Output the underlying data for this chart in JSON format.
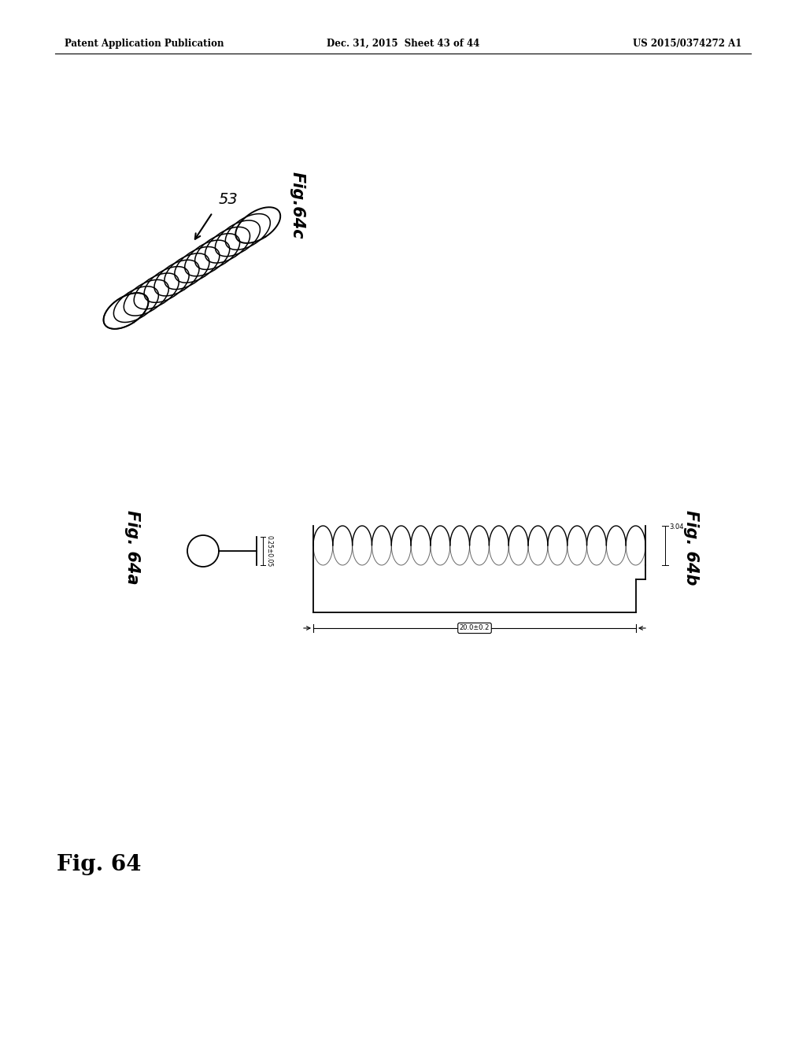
{
  "background_color": "#ffffff",
  "header_left": "Patent Application Publication",
  "header_center": "Dec. 31, 2015  Sheet 43 of 44",
  "header_right": "US 2015/0374272 A1",
  "fig_label": "Fig. 64",
  "fig64c_label": "Fig.64c",
  "fig64a_label": "Fig. 64a",
  "fig64b_label": "Fig. 64b",
  "part_number": "53",
  "dim_64a": "0.25±0.05",
  "dim_64b_height": "3.04",
  "dim_64b_width": "20.0±0.2"
}
